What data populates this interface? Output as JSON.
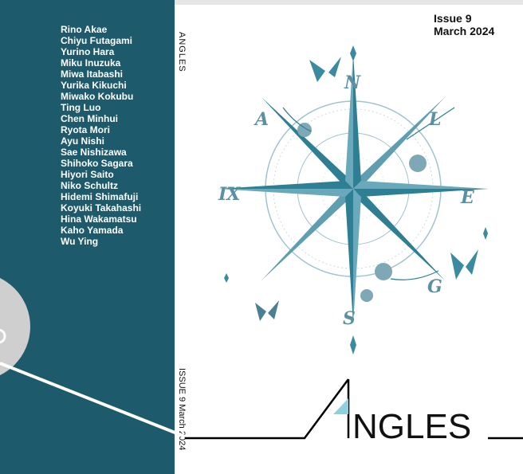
{
  "back_cover": {
    "names": [
      "Rino Akae",
      "Chiyu Futagami",
      "Yurino Hara",
      "Miku Inuzuka",
      "Miwa Itabashi",
      "Yurika Kikuchi",
      "Miwako Kokubu",
      "Ting Luo",
      "Chen Minhui",
      "Ryota Mori",
      "Ayu Nishi",
      "Sae Nishizawa",
      "Shihoko Sagara",
      "Hiyori Saito",
      "Niko Schultz",
      "Hidemi Shimafuji",
      "Koyuki Takahashi",
      "Hina Wakamatsu",
      "Kaho Yamada",
      "Wu Ying"
    ],
    "color": "#1d5a6c"
  },
  "spine": {
    "title": "ANGLES",
    "issue_date": "ISSUE 9  March 2024"
  },
  "cover": {
    "issue": "Issue 9",
    "date": "March 2024",
    "compass_letters": {
      "n": "N",
      "a": "A",
      "l": "L",
      "ix": "IX",
      "e": "E",
      "g": "G",
      "s": "S"
    },
    "logo_first_letter": "A",
    "logo_rest": "NGLES",
    "accent": "#2f7f94",
    "logo_triangle": "#8fd0e0"
  }
}
